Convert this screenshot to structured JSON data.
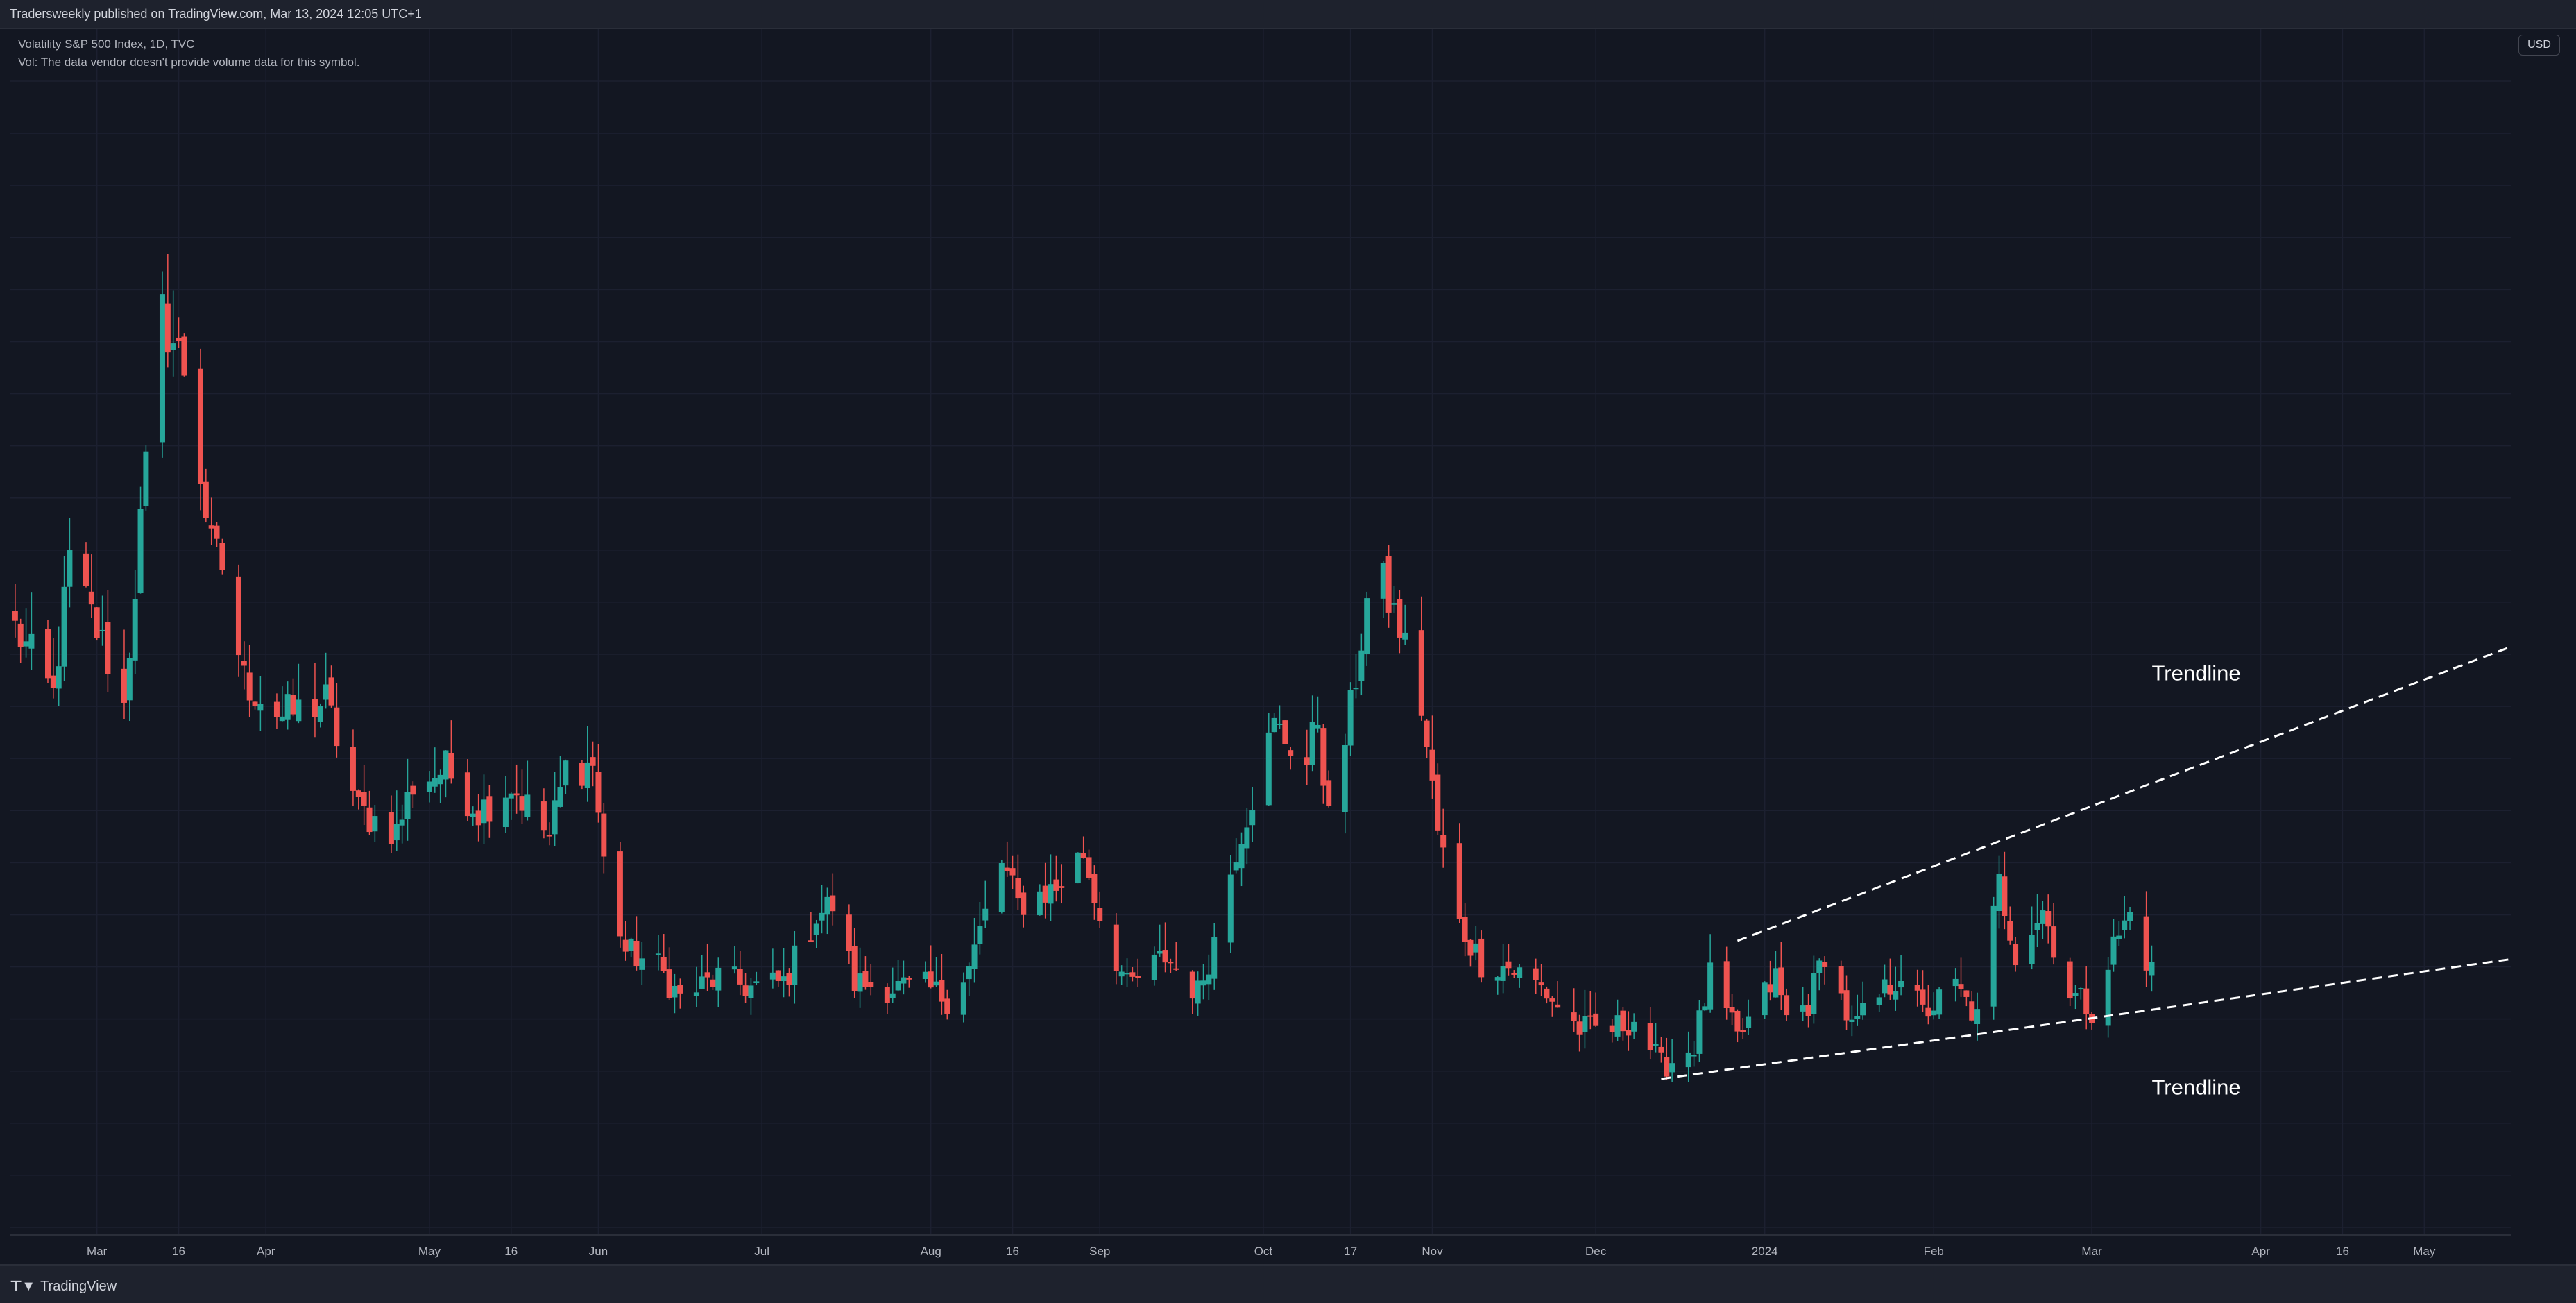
{
  "header": {
    "published_text": "Tradersweekly published on TradingView.com, Mar 13, 2024 12:05 UTC+1"
  },
  "legend": {
    "symbol_line": "Volatility S&P 500 Index, 1D, TVC",
    "volume_line": "Vol: The data vendor doesn't provide volume data for this symbol."
  },
  "currency": "USD",
  "footer": {
    "logo_text": "TradingView"
  },
  "colors": {
    "background": "#131722",
    "up": "#26a69a",
    "down": "#ef5350",
    "grid": "#1f2330",
    "text": "#b2b5be"
  },
  "chart_data": {
    "type": "candlestick",
    "title": "Volatility S&P 500 Index, 1D, TVC",
    "y_range": [
      9,
      31
    ],
    "y_ticks": [
      "31.00",
      "30.00",
      "29.00",
      "28.00",
      "27.00",
      "26.00",
      "25.00",
      "24.00",
      "23.00",
      "22.00",
      "21.00",
      "20.00",
      "19.00",
      "18.00",
      "17.00",
      "16.00",
      "15.00",
      "14.00",
      "13.00",
      "12.00",
      "11.00",
      "10.00",
      "9.00"
    ],
    "x_ticks": [
      {
        "label": "Mar",
        "date": "2023-03-01"
      },
      {
        "label": "16",
        "date": "2023-03-16"
      },
      {
        "label": "Apr",
        "date": "2023-04-01"
      },
      {
        "label": "May",
        "date": "2023-05-01"
      },
      {
        "label": "16",
        "date": "2023-05-16"
      },
      {
        "label": "Jun",
        "date": "2023-06-01"
      },
      {
        "label": "Jul",
        "date": "2023-07-01"
      },
      {
        "label": "Aug",
        "date": "2023-08-01"
      },
      {
        "label": "16",
        "date": "2023-08-16"
      },
      {
        "label": "Sep",
        "date": "2023-09-01"
      },
      {
        "label": "Oct",
        "date": "2023-10-01"
      },
      {
        "label": "17",
        "date": "2023-10-17"
      },
      {
        "label": "Nov",
        "date": "2023-11-01"
      },
      {
        "label": "Dec",
        "date": "2023-12-01"
      },
      {
        "label": "2024",
        "date": "2024-01-01"
      },
      {
        "label": "Feb",
        "date": "2024-02-01"
      },
      {
        "label": "Mar",
        "date": "2024-03-01"
      },
      {
        "label": "Apr",
        "date": "2024-04-01"
      },
      {
        "label": "16",
        "date": "2024-04-16"
      },
      {
        "label": "May",
        "date": "2024-05-01"
      }
    ],
    "x_range": [
      "2023-02-13",
      "2024-05-17"
    ],
    "anchors": [
      [
        "2023-02-14",
        20.5
      ],
      [
        "2023-02-21",
        19.2
      ],
      [
        "2023-02-24",
        21.8
      ],
      [
        "2023-03-02",
        20.2
      ],
      [
        "2023-03-06",
        19.0
      ],
      [
        "2023-03-09",
        22.5
      ],
      [
        "2023-03-13",
        26.5
      ],
      [
        "2023-03-15",
        26.0
      ],
      [
        "2023-03-17",
        25.5
      ],
      [
        "2023-03-20",
        23.5
      ],
      [
        "2023-03-22",
        22.0
      ],
      [
        "2023-03-24",
        21.7
      ],
      [
        "2023-03-28",
        19.5
      ],
      [
        "2023-04-04",
        18.8
      ],
      [
        "2023-04-12",
        19.1
      ],
      [
        "2023-04-18",
        17.0
      ],
      [
        "2023-04-25",
        16.6
      ],
      [
        "2023-04-28",
        17.5
      ],
      [
        "2023-05-04",
        17.8
      ],
      [
        "2023-05-10",
        17.0
      ],
      [
        "2023-05-16",
        17.5
      ],
      [
        "2023-05-23",
        16.5
      ],
      [
        "2023-05-26",
        17.8
      ],
      [
        "2023-05-31",
        17.9
      ],
      [
        "2023-06-02",
        16.0
      ],
      [
        "2023-06-06",
        14.3
      ],
      [
        "2023-06-12",
        14.0
      ],
      [
        "2023-06-16",
        13.4
      ],
      [
        "2023-06-23",
        13.8
      ],
      [
        "2023-06-29",
        13.6
      ],
      [
        "2023-07-05",
        13.7
      ],
      [
        "2023-07-11",
        15.0
      ],
      [
        "2023-07-14",
        15.2
      ],
      [
        "2023-07-18",
        13.7
      ],
      [
        "2023-07-25",
        13.6
      ],
      [
        "2023-07-31",
        13.6
      ],
      [
        "2023-08-04",
        13.4
      ],
      [
        "2023-08-08",
        14.0
      ],
      [
        "2023-08-14",
        16.0
      ],
      [
        "2023-08-17",
        15.2
      ],
      [
        "2023-08-21",
        15.4
      ],
      [
        "2023-08-24",
        15.5
      ],
      [
        "2023-08-29",
        16.2
      ],
      [
        "2023-09-01",
        15.0
      ],
      [
        "2023-09-06",
        13.6
      ],
      [
        "2023-09-13",
        14.2
      ],
      [
        "2023-09-19",
        13.5
      ],
      [
        "2023-09-22",
        14.5
      ],
      [
        "2023-09-26",
        16.3
      ],
      [
        "2023-09-29",
        17.3
      ],
      [
        "2023-10-03",
        18.6
      ],
      [
        "2023-10-05",
        18.4
      ],
      [
        "2023-10-09",
        17.9
      ],
      [
        "2023-10-11",
        18.8
      ],
      [
        "2023-10-13",
        16.8
      ],
      [
        "2023-10-17",
        18.9
      ],
      [
        "2023-10-20",
        21.0
      ],
      [
        "2023-10-23",
        21.3
      ],
      [
        "2023-10-26",
        20.5
      ],
      [
        "2023-10-30",
        19.0
      ],
      [
        "2023-11-02",
        16.6
      ],
      [
        "2023-11-06",
        14.8
      ],
      [
        "2023-11-10",
        14.1
      ],
      [
        "2023-11-15",
        14.0
      ],
      [
        "2023-11-21",
        13.6
      ],
      [
        "2023-11-28",
        12.8
      ],
      [
        "2023-12-04",
        12.8
      ],
      [
        "2023-12-08",
        13.0
      ],
      [
        "2023-12-13",
        12.1
      ],
      [
        "2023-12-15",
        12.2
      ],
      [
        "2023-12-19",
        12.5
      ],
      [
        "2023-12-22",
        13.8
      ],
      [
        "2023-12-27",
        12.6
      ],
      [
        "2024-01-03",
        13.8
      ],
      [
        "2024-01-05",
        13.0
      ],
      [
        "2024-01-09",
        13.3
      ],
      [
        "2024-01-12",
        14.3
      ],
      [
        "2024-01-17",
        12.8
      ],
      [
        "2024-01-22",
        13.4
      ],
      [
        "2024-01-26",
        13.9
      ],
      [
        "2024-01-30",
        13.1
      ],
      [
        "2024-02-05",
        13.6
      ],
      [
        "2024-02-09",
        13.0
      ],
      [
        "2024-02-13",
        15.6
      ],
      [
        "2024-02-16",
        14.3
      ],
      [
        "2024-02-21",
        15.1
      ],
      [
        "2024-02-26",
        13.5
      ],
      [
        "2024-03-01",
        13.2
      ],
      [
        "2024-03-05",
        14.4
      ],
      [
        "2024-03-08",
        15.0
      ],
      [
        "2024-03-12",
        13.9
      ]
    ],
    "candles_note_down_fraction": 0.55,
    "annotations": [
      {
        "type": "trendline",
        "style": "dashed",
        "label": "Trendline",
        "from": [
          "2023-12-13",
          11.85
        ],
        "to": [
          "2024-05-17",
          14.15
        ]
      },
      {
        "type": "trendline",
        "style": "dashed",
        "label": "Trendline",
        "from": [
          "2023-12-27",
          14.5
        ],
        "to": [
          "2024-05-17",
          20.15
        ]
      }
    ]
  }
}
